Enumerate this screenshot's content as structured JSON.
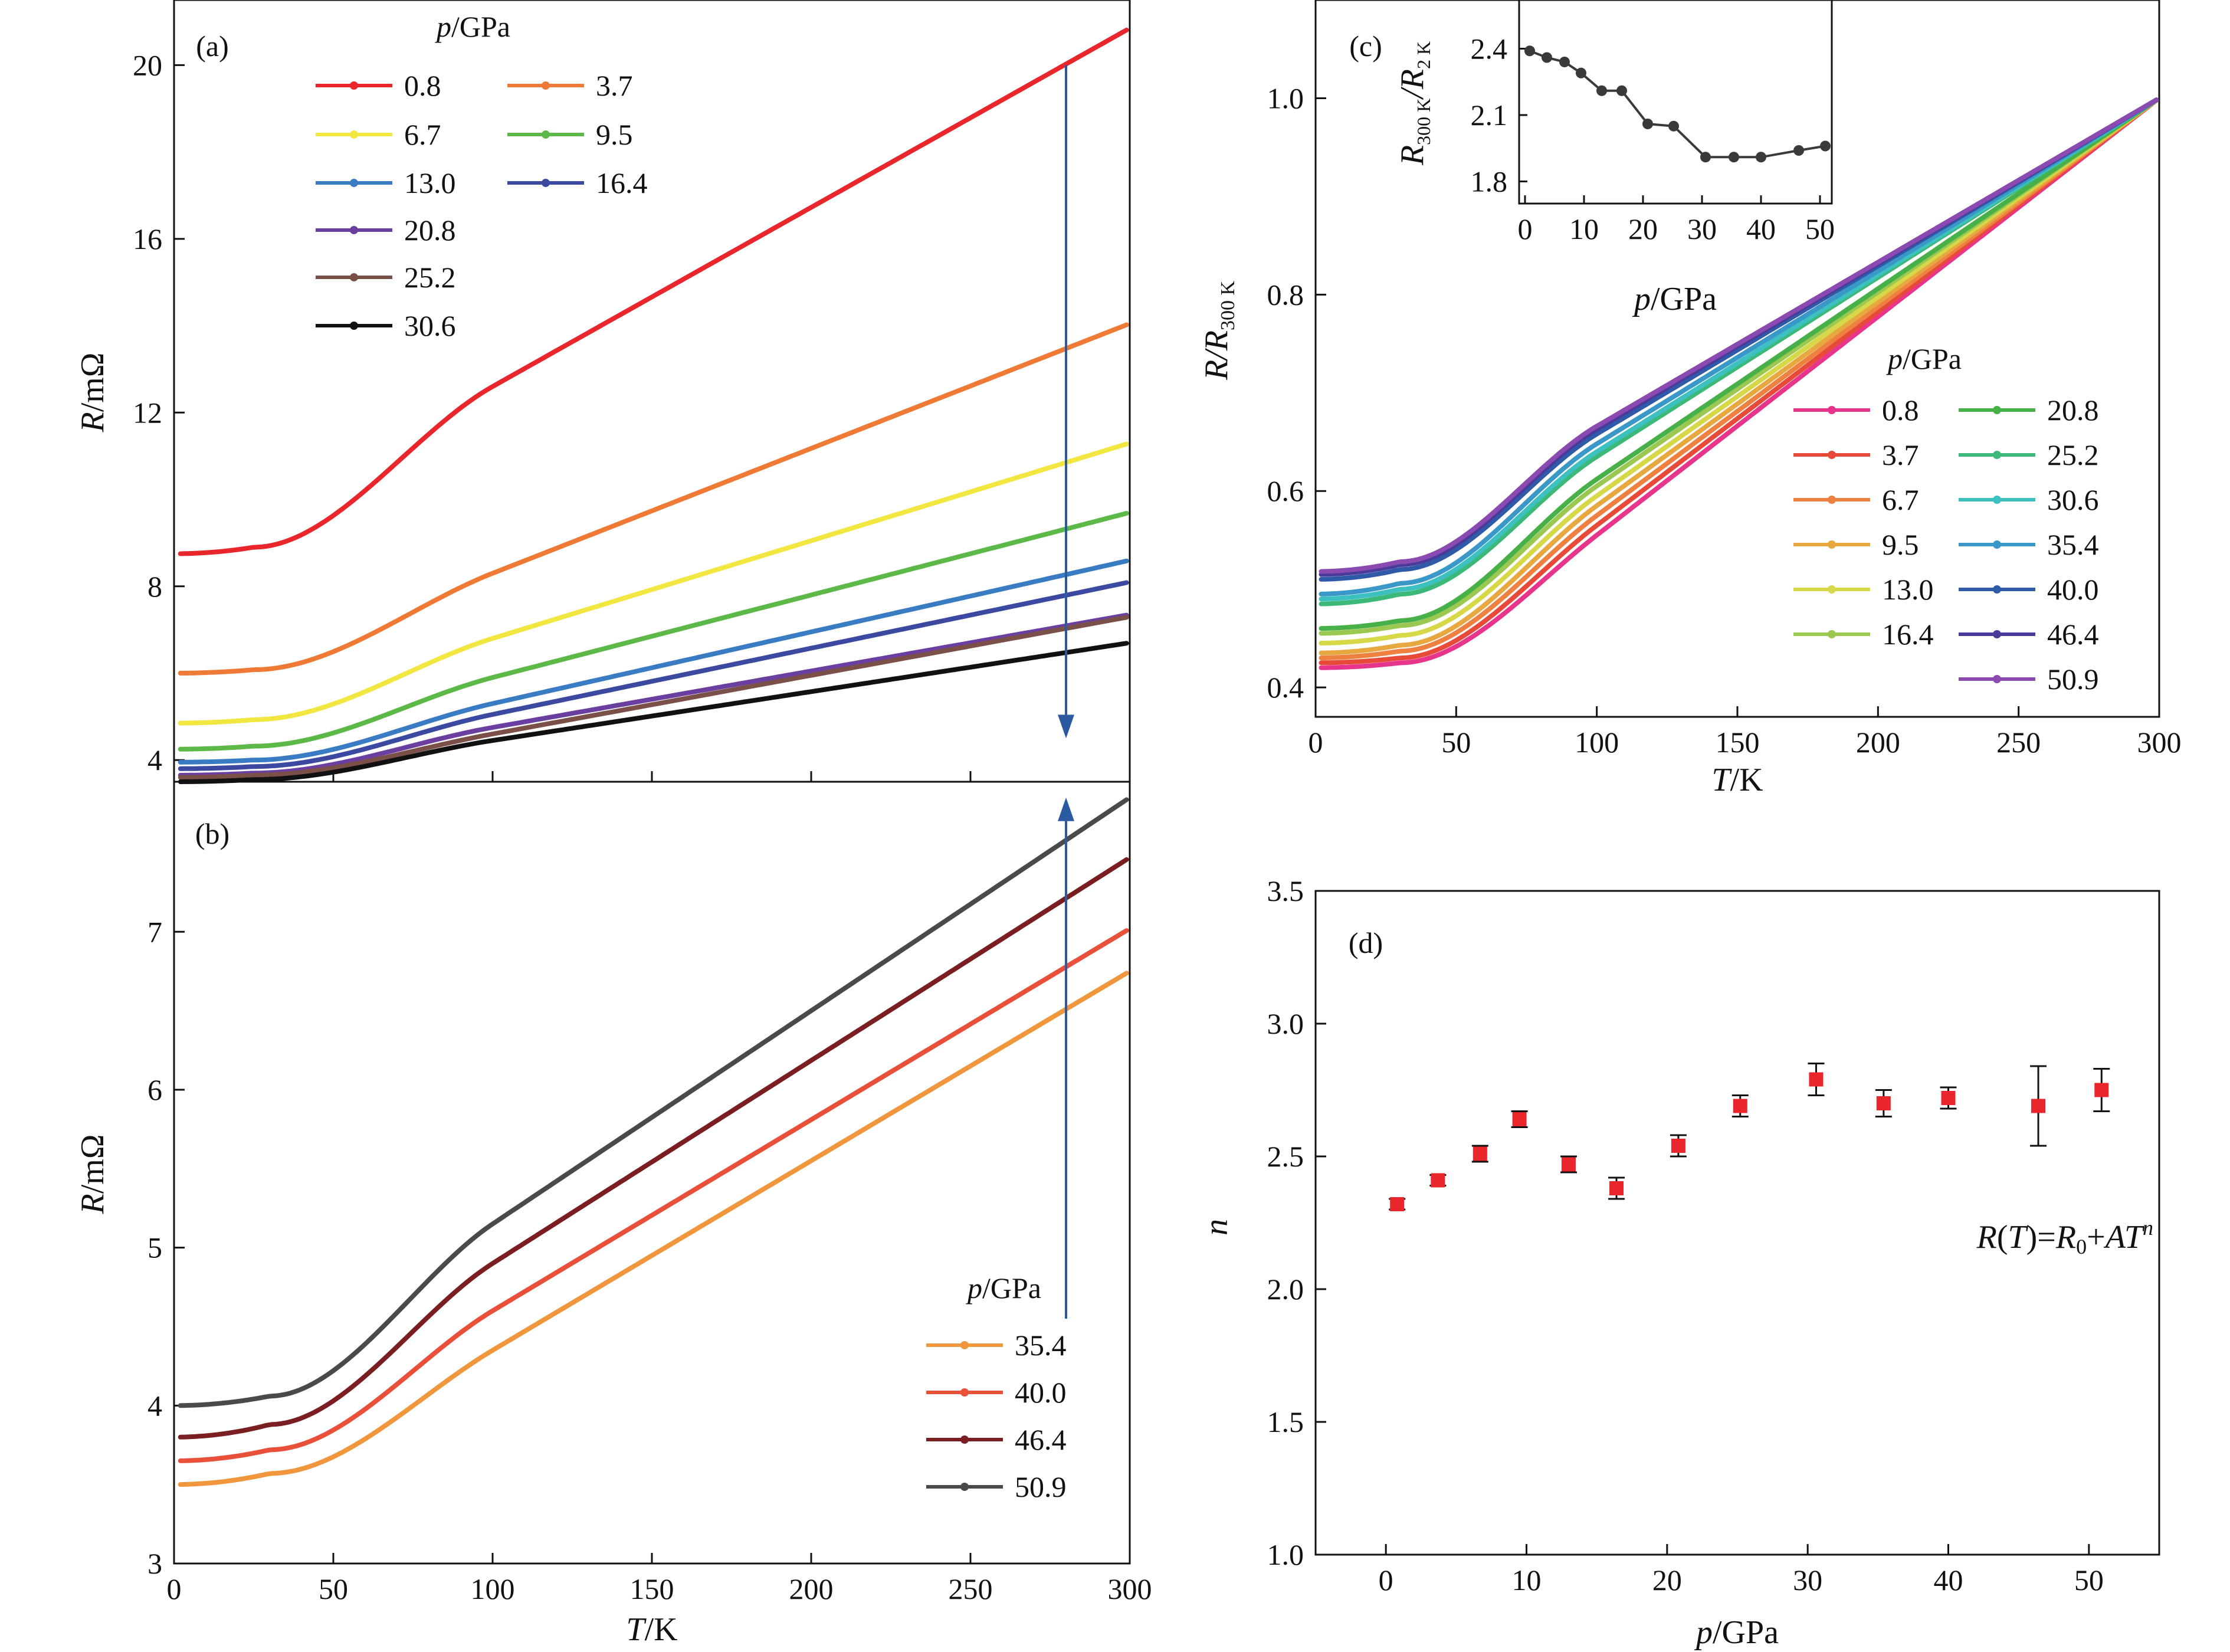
{
  "chart_data": [
    {
      "panel": "(a)",
      "type": "line",
      "xlabel_sym": "T",
      "xlabel_unit": "/K",
      "ylabel_sym": "R",
      "ylabel_unit": "/mΩ",
      "xlim": [
        0,
        300
      ],
      "ylim": [
        3.5,
        21.5
      ],
      "xticks": [
        0,
        50,
        100,
        150,
        200,
        250,
        300
      ],
      "yticks": [
        4,
        8,
        12,
        16,
        20
      ],
      "legend_title_sym": "p",
      "legend_title_unit": "/GPa",
      "legend": "top-left, two columns",
      "arrow": {
        "x": 280,
        "from": 20.0,
        "to": 4.5,
        "direction": "down",
        "color": "#2c5aa0"
      },
      "series": [
        {
          "name": "0.8",
          "color": "#e8262b",
          "R0": 8.75,
          "p1": [
            25,
            8.9
          ],
          "p2": [
            100,
            12.6
          ],
          "end": 20.85
        },
        {
          "name": "3.7",
          "color": "#ee7a36",
          "R0": 6.0,
          "p1": [
            25,
            6.08
          ],
          "p2": [
            100,
            8.3
          ],
          "end": 14.05
        },
        {
          "name": "6.7",
          "color": "#f2e640",
          "R0": 4.85,
          "p1": [
            25,
            4.93
          ],
          "p2": [
            100,
            6.8
          ],
          "end": 11.3
        },
        {
          "name": "9.5",
          "color": "#5cb947",
          "R0": 4.25,
          "p1": [
            25,
            4.32
          ],
          "p2": [
            100,
            5.9
          ],
          "end": 9.7
        },
        {
          "name": "13.0",
          "color": "#3a7cc4",
          "R0": 3.95,
          "p1": [
            25,
            4.0
          ],
          "p2": [
            100,
            5.3
          ],
          "end": 8.6
        },
        {
          "name": "16.4",
          "color": "#3b4aa0",
          "R0": 3.8,
          "p1": [
            25,
            3.85
          ],
          "p2": [
            100,
            5.05
          ],
          "end": 8.1
        },
        {
          "name": "20.8",
          "color": "#6a3fa0",
          "R0": 3.65,
          "p1": [
            25,
            3.7
          ],
          "p2": [
            100,
            4.75
          ],
          "end": 7.35
        },
        {
          "name": "25.2",
          "color": "#7a5048",
          "R0": 3.6,
          "p1": [
            25,
            3.65
          ],
          "p2": [
            100,
            4.6
          ],
          "end": 7.3
        },
        {
          "name": "30.6",
          "color": "#111111",
          "R0": 3.5,
          "p1": [
            25,
            3.55
          ],
          "p2": [
            100,
            4.45
          ],
          "end": 6.7
        }
      ]
    },
    {
      "panel": "(b)",
      "type": "line",
      "xlabel_sym": "T",
      "xlabel_unit": "/K",
      "ylabel_sym": "R",
      "ylabel_unit": "/mΩ",
      "xlim": [
        0,
        300
      ],
      "ylim": [
        3,
        7.95
      ],
      "xticks": [
        0,
        50,
        100,
        150,
        200,
        250,
        300
      ],
      "yticks": [
        3,
        4,
        5,
        6,
        7
      ],
      "legend_title_sym": "p",
      "legend_title_unit": "/GPa",
      "legend": "bottom-right",
      "arrow": {
        "x": 280,
        "from": 4.55,
        "to": 7.85,
        "direction": "up",
        "color": "#2c5aa0"
      },
      "series": [
        {
          "name": "35.4",
          "color": "#f0963c",
          "R0": 3.5,
          "p1": [
            30,
            3.57
          ],
          "p2": [
            100,
            4.35
          ],
          "end": 6.75
        },
        {
          "name": "40.0",
          "color": "#e8503a",
          "R0": 3.65,
          "p1": [
            30,
            3.72
          ],
          "p2": [
            100,
            4.6
          ],
          "end": 7.02
        },
        {
          "name": "46.4",
          "color": "#7a1e22",
          "R0": 3.8,
          "p1": [
            30,
            3.88
          ],
          "p2": [
            100,
            4.9
          ],
          "end": 7.47
        },
        {
          "name": "50.9",
          "color": "#4a4a4a",
          "R0": 4.0,
          "p1": [
            30,
            4.06
          ],
          "p2": [
            100,
            5.15
          ],
          "end": 7.85
        }
      ]
    },
    {
      "panel": "(c)",
      "type": "line",
      "xlabel_sym": "T",
      "xlabel_unit": "/K",
      "ylabel_sym": "R/R",
      "ylabel_sub": "300 K",
      "xlim": [
        0,
        300
      ],
      "ylim": [
        0.37,
        1.1
      ],
      "xticks": [
        0,
        50,
        100,
        150,
        200,
        250,
        300
      ],
      "yticks": [
        0.4,
        0.6,
        0.8,
        1.0
      ],
      "ytick_labels": [
        "0.4",
        "0.6",
        "0.8",
        "1.0"
      ],
      "legend_title_sym": "p",
      "legend_title_unit": "/GPa",
      "legend": "lower-right, two columns",
      "series": [
        {
          "name": "0.8",
          "color": "#e8358c",
          "R0": 0.42,
          "p1": [
            30,
            0.425
          ],
          "p2": [
            100,
            0.555
          ]
        },
        {
          "name": "3.7",
          "color": "#e84a3a",
          "R0": 0.425,
          "p1": [
            30,
            0.43
          ],
          "p2": [
            100,
            0.565
          ]
        },
        {
          "name": "6.7",
          "color": "#ee8040",
          "R0": 0.43,
          "p1": [
            30,
            0.437
          ],
          "p2": [
            100,
            0.575
          ]
        },
        {
          "name": "9.5",
          "color": "#e8a840",
          "R0": 0.435,
          "p1": [
            30,
            0.443
          ],
          "p2": [
            100,
            0.585
          ]
        },
        {
          "name": "13.0",
          "color": "#d6d848",
          "R0": 0.445,
          "p1": [
            30,
            0.453
          ],
          "p2": [
            100,
            0.595
          ]
        },
        {
          "name": "16.4",
          "color": "#9ac850",
          "R0": 0.455,
          "p1": [
            30,
            0.463
          ],
          "p2": [
            100,
            0.605
          ]
        },
        {
          "name": "20.8",
          "color": "#48b048",
          "R0": 0.46,
          "p1": [
            30,
            0.468
          ],
          "p2": [
            100,
            0.612
          ]
        },
        {
          "name": "25.2",
          "color": "#3cb878",
          "R0": 0.485,
          "p1": [
            30,
            0.495
          ],
          "p2": [
            100,
            0.635
          ]
        },
        {
          "name": "30.6",
          "color": "#3cc0c0",
          "R0": 0.49,
          "p1": [
            30,
            0.5
          ],
          "p2": [
            100,
            0.64
          ]
        },
        {
          "name": "35.4",
          "color": "#3a98c8",
          "R0": 0.495,
          "p1": [
            30,
            0.506
          ],
          "p2": [
            100,
            0.648
          ]
        },
        {
          "name": "40.0",
          "color": "#2e5aa8",
          "R0": 0.51,
          "p1": [
            30,
            0.52
          ],
          "p2": [
            100,
            0.658
          ]
        },
        {
          "name": "46.4",
          "color": "#4a3a9a",
          "R0": 0.515,
          "p1": [
            30,
            0.525
          ],
          "p2": [
            100,
            0.663
          ]
        },
        {
          "name": "50.9",
          "color": "#8a4ab0",
          "R0": 0.518,
          "p1": [
            30,
            0.528
          ],
          "p2": [
            100,
            0.666
          ]
        }
      ]
    },
    {
      "panel": "(c) inset",
      "type": "line",
      "xlabel_sym": "p",
      "xlabel_unit": "/GPa",
      "ylabel_sym": "R",
      "ylabel_sub1": "300 K",
      "ylabel_mid": "/R",
      "ylabel_sub2": "2 K",
      "xlim": [
        -1,
        52
      ],
      "ylim": [
        1.7,
        2.62
      ],
      "xticks": [
        0,
        10,
        20,
        30,
        40,
        50
      ],
      "yticks": [
        1.8,
        2.1,
        2.4
      ],
      "color": "#3a3a3a",
      "x": [
        0.8,
        3.7,
        6.7,
        9.5,
        13.0,
        16.4,
        20.8,
        25.2,
        30.6,
        35.4,
        40.0,
        46.4,
        50.9
      ],
      "y": [
        2.39,
        2.36,
        2.34,
        2.29,
        2.21,
        2.21,
        2.06,
        2.05,
        1.91,
        1.91,
        1.91,
        1.94,
        1.96
      ]
    },
    {
      "panel": "(d)",
      "type": "scatter",
      "xlabel_sym": "p",
      "xlabel_unit": "/GPa",
      "ylabel_sym": "n",
      "xlim": [
        -5,
        55
      ],
      "ylim": [
        1.0,
        3.5
      ],
      "xticks": [
        0,
        10,
        20,
        30,
        40,
        50
      ],
      "yticks": [
        1.0,
        1.5,
        2.0,
        2.5,
        3.0,
        3.5
      ],
      "ytick_labels": [
        "1.0",
        "1.5",
        "2.0",
        "2.5",
        "3.0",
        "3.5"
      ],
      "marker_color": "#e8262b",
      "annotation": {
        "R": "R",
        "lp": "(",
        "T": "T",
        "rp": ")",
        "eq": "=",
        "R0": "R",
        "zero": "0",
        "plus": "+",
        "A": "A",
        "T2": "T",
        "nexp": "n"
      },
      "x": [
        0.8,
        3.7,
        6.7,
        9.5,
        13.0,
        16.4,
        20.8,
        25.2,
        30.6,
        35.4,
        40.0,
        46.4,
        50.9
      ],
      "y": [
        2.32,
        2.41,
        2.51,
        2.64,
        2.47,
        2.38,
        2.54,
        2.69,
        2.79,
        2.7,
        2.72,
        2.69,
        2.75
      ],
      "err": [
        0.02,
        0.02,
        0.03,
        0.03,
        0.03,
        0.04,
        0.04,
        0.04,
        0.06,
        0.05,
        0.04,
        0.15,
        0.08
      ]
    }
  ]
}
